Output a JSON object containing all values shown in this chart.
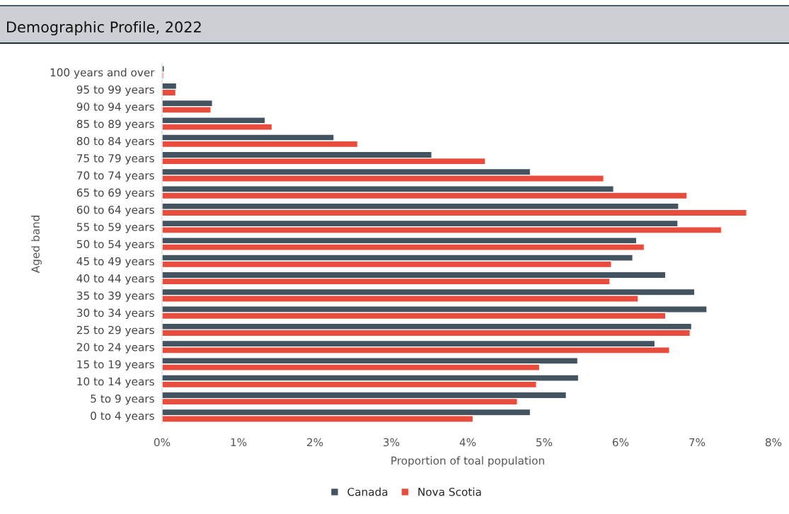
{
  "chart_data": {
    "type": "bar",
    "orientation": "horizontal",
    "title": "Demographic Profile, 2022",
    "xlabel": "Proportion of toal population",
    "ylabel": "Aged band",
    "categories": [
      "100 years and over",
      "95 to 99 years",
      "90 to 94 years",
      "85 to 89 years",
      "80 to 84 years",
      "75 to 79 years",
      "70 to 74 years",
      "65 to 69 years",
      "60 to 64 years",
      "55 to 59 years",
      "50 to 54 years",
      "45 to 49 years",
      "40 to 44 years",
      "35 to 39 years",
      "30 to 34 years",
      "25 to 29 years",
      "20 to 24 years",
      "15 to 19 years",
      "10 to 14 years",
      "5 to 9 years",
      "0 to 4 years"
    ],
    "series": [
      {
        "name": "Canada",
        "color": "#43535f",
        "values": [
          0.03,
          0.19,
          0.66,
          1.35,
          2.25,
          3.53,
          4.82,
          5.91,
          6.76,
          6.75,
          6.21,
          6.16,
          6.59,
          6.97,
          7.13,
          6.93,
          6.45,
          5.44,
          5.45,
          5.29,
          4.82
        ]
      },
      {
        "name": "Nova Scotia",
        "color": "#e74c3c",
        "values": [
          0.02,
          0.18,
          0.64,
          1.44,
          2.56,
          4.23,
          5.78,
          6.87,
          7.65,
          7.32,
          6.31,
          5.88,
          5.86,
          6.23,
          6.59,
          6.91,
          6.64,
          4.94,
          4.9,
          4.65,
          4.07
        ]
      }
    ],
    "xlim": [
      0,
      8
    ],
    "xticks": [
      {
        "value": 0,
        "label": "0%"
      },
      {
        "value": 1,
        "label": "1%"
      },
      {
        "value": 2,
        "label": "2%"
      },
      {
        "value": 3,
        "label": "3%"
      },
      {
        "value": 4,
        "label": "4%"
      },
      {
        "value": 5,
        "label": "5%"
      },
      {
        "value": 6,
        "label": "6%"
      },
      {
        "value": 7,
        "label": "7%"
      },
      {
        "value": 8,
        "label": "8%"
      }
    ],
    "grid": false,
    "legend": "bottom"
  }
}
